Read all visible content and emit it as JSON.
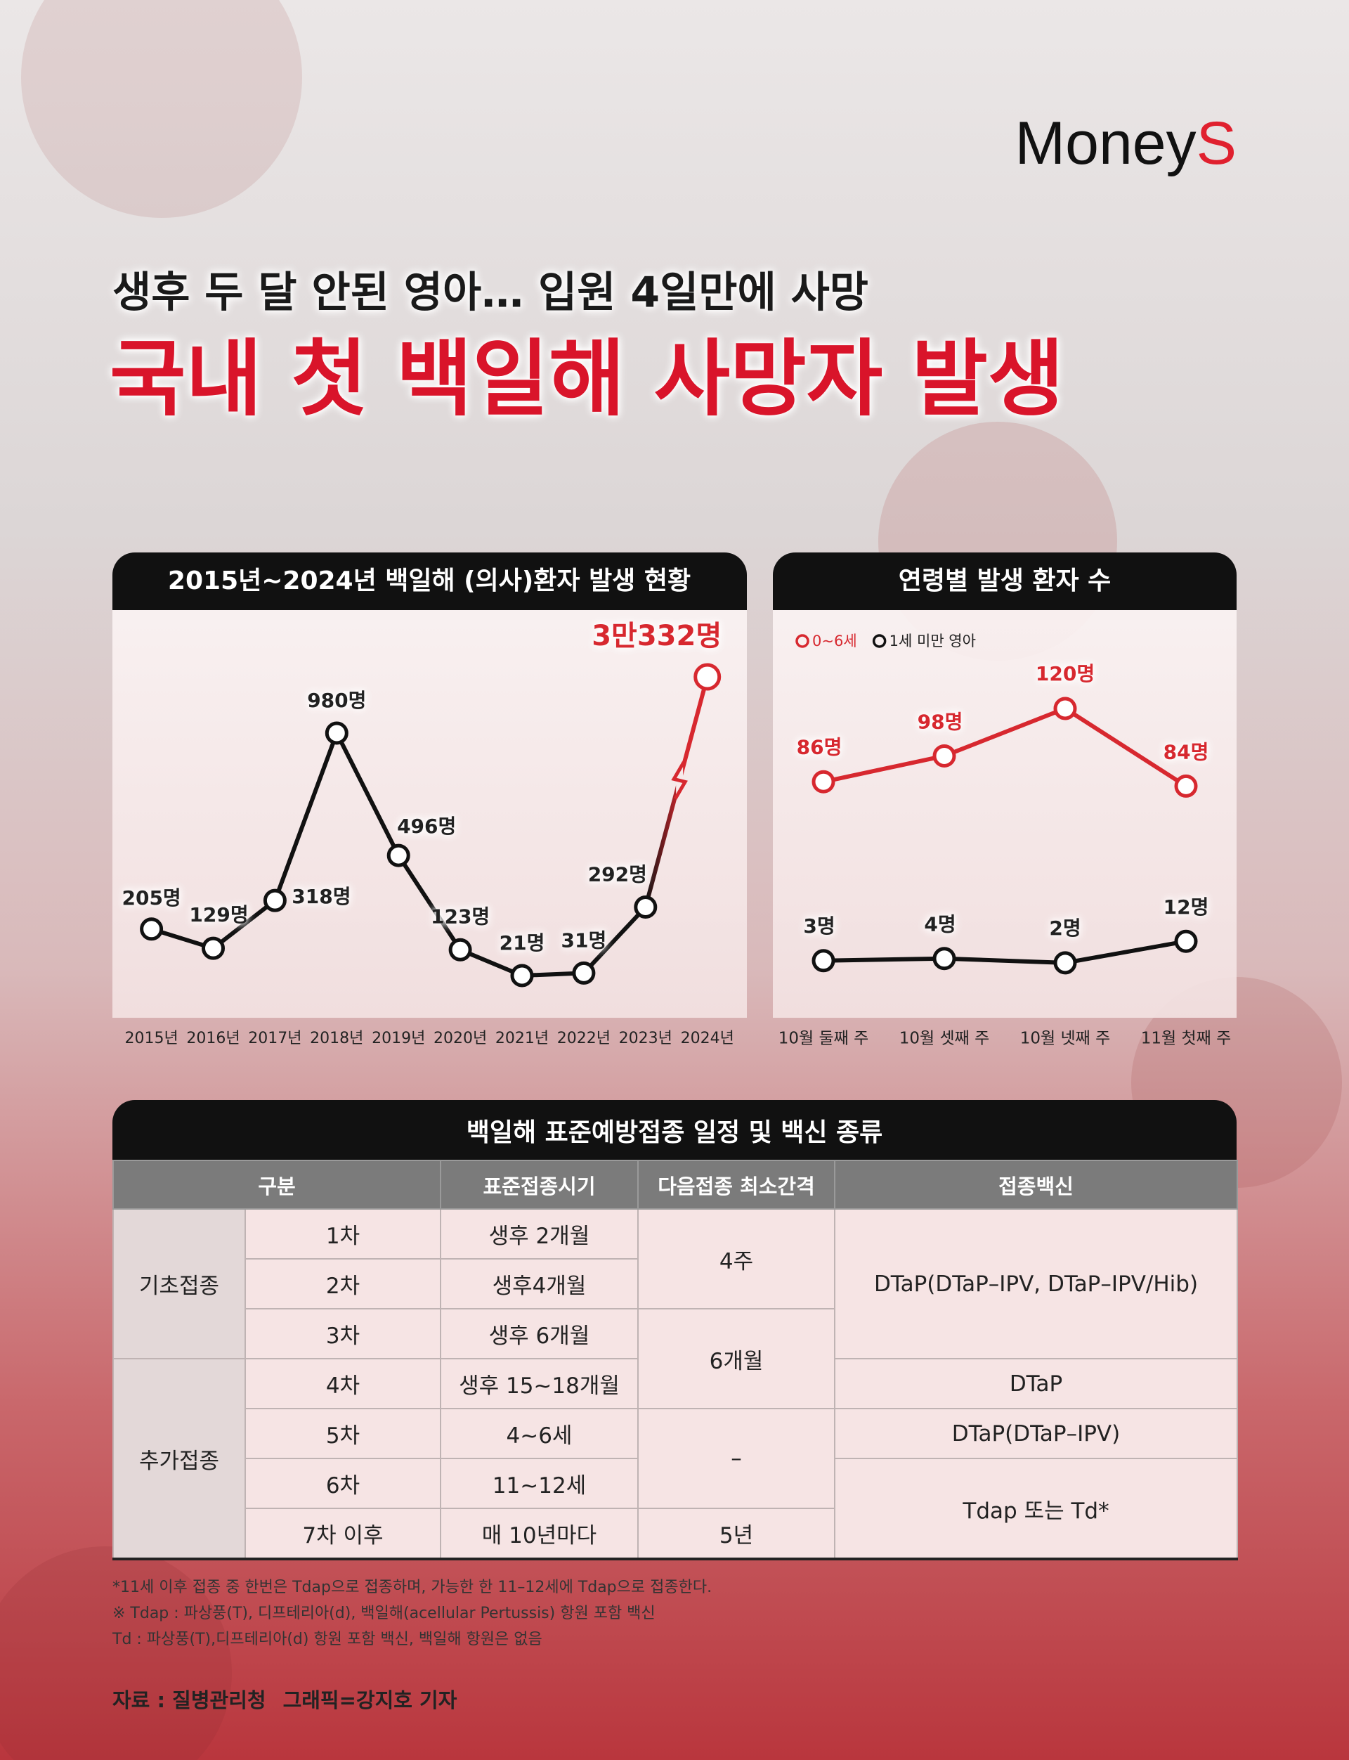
{
  "brand": {
    "main": "Money",
    "accent": "S"
  },
  "subtitle": "생후 두 달 안된 영아… 입원 4일만에 사망",
  "title": "국내 첫 백일해 사망자 발생",
  "chart_data": [
    {
      "type": "line",
      "title": "2015년~2024년 백일해 (의사)환자 발생 현황",
      "categories": [
        "2015년",
        "2016년",
        "2017년",
        "2018년",
        "2019년",
        "2020년",
        "2021년",
        "2022년",
        "2023년",
        "2024년"
      ],
      "values": [
        205,
        129,
        318,
        980,
        496,
        123,
        21,
        31,
        292,
        30332
      ],
      "value_labels": [
        "205명",
        "129명",
        "318명",
        "980명",
        "496명",
        "123명",
        "21명",
        "31명",
        "292명",
        "3만332명"
      ],
      "color": "#111111",
      "axis_break": true,
      "break_color": "#d7282f"
    },
    {
      "type": "line",
      "title": "연령별 발생 환자 수",
      "categories": [
        "10월 둘째 주",
        "10월 셋째 주",
        "10월 넷째 주",
        "11월 첫째 주"
      ],
      "series": [
        {
          "name": "0~6세",
          "color": "#d7282f",
          "values": [
            86,
            98,
            120,
            84
          ],
          "value_labels": [
            "86명",
            "98명",
            "120명",
            "84명"
          ]
        },
        {
          "name": "1세 미만 영아",
          "color": "#111111",
          "values": [
            3,
            4,
            2,
            12
          ],
          "value_labels": [
            "3명",
            "4명",
            "2명",
            "12명"
          ]
        }
      ],
      "legend": "top-left"
    }
  ],
  "table": {
    "title": "백일해 표준예방접종 일정 및 백신 종류",
    "header": [
      "구분",
      "표준접종시기",
      "다음접종 최소간격",
      "접종백신"
    ],
    "rows": [
      [
        "기초접종",
        "1차",
        "생후 2개월",
        "4주",
        "DTaP(DTaP–IPV, DTaP–IPV/Hib)"
      ],
      [
        "2차",
        "생후4개월"
      ],
      [
        "3차",
        "생후 6개월",
        "6개월"
      ],
      [
        "추가접종",
        "4차",
        "생후 15~18개월",
        "DTaP"
      ],
      [
        "5차",
        "4~6세",
        "–",
        "DTaP(DTaP–IPV)"
      ],
      [
        "6차",
        "11~12세",
        "Tdap 또는 Td*"
      ],
      [
        "7차 이후",
        "매 10년마다",
        "5년"
      ]
    ]
  },
  "notes": [
    "*11세 이후 접종 중 한번은 Tdap으로 접종하며, 가능한 한 11–12세에 Tdap으로 접종한다.",
    "※ Tdap : 파상풍(T), 디프테리아(d), 백일해(acellular Pertussis) 항원 포함 백신",
    "Td : 파상풍(T),디프테리아(d) 항원 포함 백신, 백일해 항원은 없음"
  ],
  "source": "자료 : 질병관리청",
  "credit": "그래픽=강지호 기자"
}
